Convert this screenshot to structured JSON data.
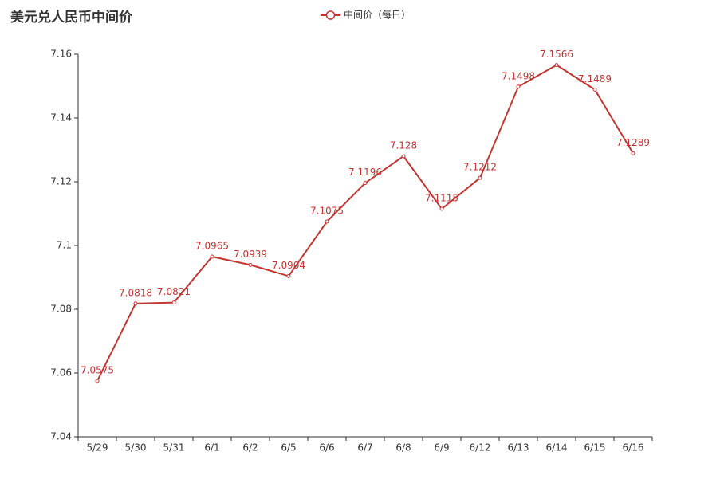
{
  "chart_data": {
    "type": "line",
    "title": "美元兑人民币中间价",
    "categories": [
      "5/29",
      "5/30",
      "5/31",
      "6/1",
      "6/2",
      "6/5",
      "6/6",
      "6/7",
      "6/8",
      "6/9",
      "6/12",
      "6/13",
      "6/14",
      "6/15",
      "6/16"
    ],
    "series": [
      {
        "name": "中间价（每日）",
        "color": "#c23531",
        "values": [
          7.0575,
          7.0818,
          7.0821,
          7.0965,
          7.0939,
          7.0904,
          7.1075,
          7.1196,
          7.128,
          7.1115,
          7.1212,
          7.1498,
          7.1566,
          7.1489,
          7.1289
        ]
      }
    ],
    "ylim": [
      7.04,
      7.16
    ],
    "yticks": [
      7.04,
      7.06,
      7.08,
      7.1,
      7.12,
      7.14,
      7.16
    ],
    "grid": false,
    "legend": "top"
  }
}
